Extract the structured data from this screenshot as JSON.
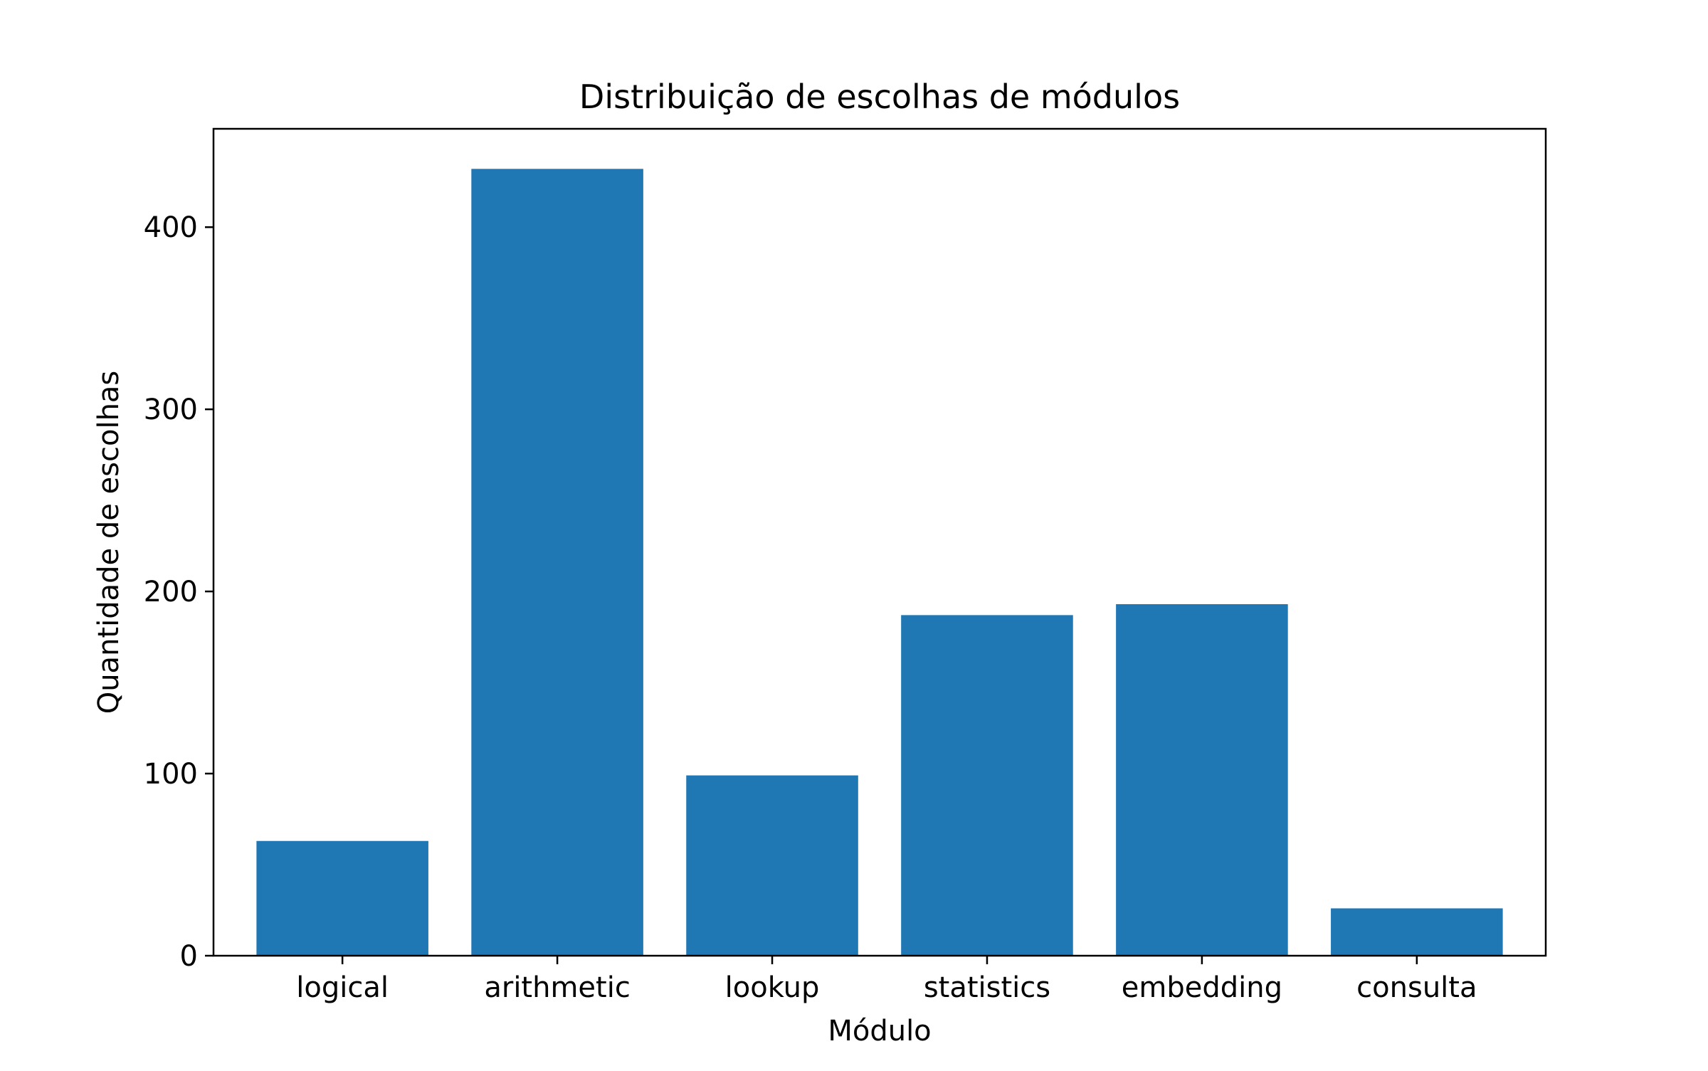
{
  "chart_data": {
    "type": "bar",
    "title": "Distribuição de escolhas de módulos",
    "xlabel": "Módulo",
    "ylabel": "Quantidade de escolhas",
    "categories": [
      "logical",
      "arithmetic",
      "lookup",
      "statistics",
      "embedding",
      "consulta"
    ],
    "values": [
      63,
      432,
      99,
      187,
      193,
      26
    ],
    "ylim": [
      0,
      454
    ],
    "yticks": [
      0,
      100,
      200,
      300,
      400
    ],
    "ytick_labels": [
      "0",
      "100",
      "200",
      "300",
      "400"
    ],
    "grid": false,
    "legend": "none",
    "bar_color": "#1f77b4"
  }
}
